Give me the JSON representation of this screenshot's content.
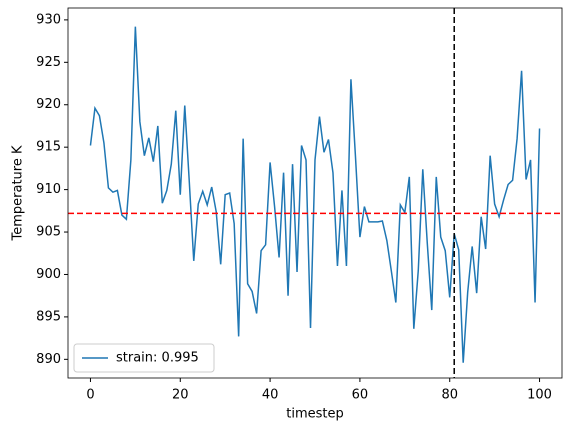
{
  "chart_data": {
    "type": "line",
    "xlabel": "timestep",
    "ylabel": "Temperature K",
    "x": [
      0,
      1,
      2,
      3,
      4,
      5,
      6,
      7,
      8,
      9,
      10,
      11,
      12,
      13,
      14,
      15,
      16,
      17,
      18,
      19,
      20,
      21,
      22,
      23,
      24,
      25,
      26,
      27,
      28,
      29,
      30,
      31,
      32,
      33,
      34,
      35,
      36,
      37,
      38,
      39,
      40,
      41,
      42,
      43,
      44,
      45,
      46,
      47,
      48,
      49,
      50,
      51,
      52,
      53,
      54,
      55,
      56,
      57,
      58,
      59,
      60,
      61,
      62,
      63,
      64,
      65,
      66,
      67,
      68,
      69,
      70,
      71,
      72,
      73,
      74,
      75,
      76,
      77,
      78,
      79,
      80,
      81,
      82,
      83,
      84,
      85,
      86,
      87,
      88,
      89,
      90,
      91,
      92,
      93,
      94,
      95,
      96,
      97,
      98,
      99,
      100
    ],
    "series": [
      {
        "name": "strain: 0.995",
        "color": "#1f77b4",
        "values": [
          915.2,
          919.6,
          918.7,
          915.5,
          910.2,
          909.7,
          909.9,
          907.0,
          906.5,
          913.5,
          929.2,
          918.0,
          914.0,
          916.1,
          913.3,
          917.5,
          908.4,
          909.9,
          913.0,
          919.3,
          909.4,
          919.9,
          911.0,
          901.6,
          908.3,
          909.8,
          908.2,
          910.3,
          907.4,
          901.2,
          909.4,
          909.6,
          906.0,
          892.7,
          916.0,
          898.9,
          898.0,
          895.4,
          902.8,
          903.5,
          913.2,
          908.0,
          902.0,
          912.0,
          897.5,
          913.0,
          900.3,
          915.2,
          913.5,
          893.7,
          913.5,
          918.6,
          914.4,
          915.9,
          912.0,
          901.0,
          909.9,
          901.0,
          923.0,
          914.0,
          904.4,
          908.0,
          906.2,
          906.2,
          906.2,
          906.3,
          904.0,
          900.4,
          896.7,
          908.2,
          907.3,
          911.5,
          893.6,
          900.5,
          912.4,
          903.7,
          895.8,
          911.5,
          904.4,
          902.8,
          897.3,
          904.8,
          902.9,
          889.6,
          897.9,
          903.3,
          897.8,
          906.8,
          903.0,
          914.0,
          908.3,
          906.8,
          908.8,
          910.6,
          911.1,
          916.0,
          924.0,
          911.2,
          913.5,
          896.7,
          917.2
        ]
      }
    ],
    "hline": {
      "value": 907.2,
      "color": "#ff0000"
    },
    "vline": {
      "value": 81,
      "color": "#000000"
    },
    "xlim": [
      -5,
      105
    ],
    "ylim": [
      887.8,
      931.4
    ],
    "xticks": [
      0,
      20,
      40,
      60,
      80,
      100
    ],
    "yticks": [
      890,
      895,
      900,
      905,
      910,
      915,
      920,
      925,
      930
    ],
    "legend": "lower left"
  }
}
